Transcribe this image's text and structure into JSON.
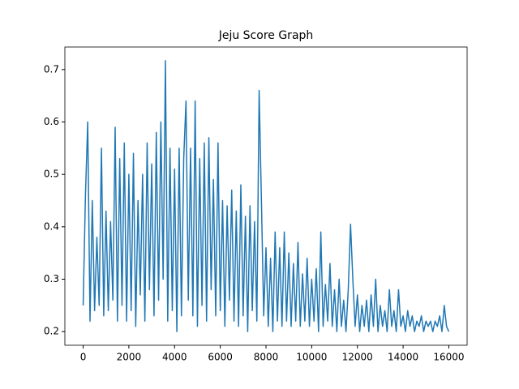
{
  "chart_data": {
    "type": "line",
    "title": "Jeju Score Graph",
    "x": [
      0,
      100,
      200,
      300,
      400,
      500,
      600,
      700,
      800,
      900,
      1000,
      1100,
      1200,
      1300,
      1400,
      1500,
      1600,
      1700,
      1800,
      1900,
      2000,
      2100,
      2200,
      2300,
      2400,
      2500,
      2600,
      2700,
      2800,
      2900,
      3000,
      3100,
      3200,
      3300,
      3400,
      3500,
      3600,
      3700,
      3800,
      3900,
      4000,
      4100,
      4200,
      4300,
      4400,
      4500,
      4600,
      4700,
      4800,
      4900,
      5000,
      5100,
      5200,
      5300,
      5400,
      5500,
      5600,
      5700,
      5800,
      5900,
      6000,
      6100,
      6200,
      6300,
      6400,
      6500,
      6600,
      6700,
      6800,
      6900,
      7000,
      7100,
      7200,
      7300,
      7400,
      7500,
      7600,
      7700,
      7800,
      7900,
      8000,
      8100,
      8200,
      8300,
      8400,
      8500,
      8600,
      8700,
      8800,
      8900,
      9000,
      9100,
      9200,
      9300,
      9400,
      9500,
      9600,
      9700,
      9800,
      9900,
      10000,
      10100,
      10200,
      10300,
      10400,
      10500,
      10600,
      10700,
      10800,
      10900,
      11000,
      11100,
      11200,
      11300,
      11400,
      11500,
      11600,
      11700,
      11800,
      11900,
      12000,
      12100,
      12200,
      12300,
      12400,
      12500,
      12600,
      12700,
      12800,
      12900,
      13000,
      13100,
      13200,
      13300,
      13400,
      13500,
      13600,
      13700,
      13800,
      13900,
      14000,
      14100,
      14200,
      14300,
      14400,
      14500,
      14600,
      14700,
      14800,
      14900,
      15000,
      15100,
      15200,
      15300,
      15400,
      15500,
      15600,
      15700,
      15800,
      15900,
      16000
    ],
    "values": [
      0.25,
      0.46,
      0.6,
      0.22,
      0.45,
      0.24,
      0.38,
      0.25,
      0.55,
      0.23,
      0.43,
      0.24,
      0.41,
      0.26,
      0.59,
      0.22,
      0.53,
      0.25,
      0.56,
      0.22,
      0.5,
      0.24,
      0.54,
      0.21,
      0.45,
      0.27,
      0.5,
      0.22,
      0.56,
      0.28,
      0.52,
      0.23,
      0.58,
      0.26,
      0.6,
      0.3,
      0.717,
      0.22,
      0.55,
      0.24,
      0.51,
      0.2,
      0.55,
      0.23,
      0.53,
      0.64,
      0.26,
      0.55,
      0.23,
      0.64,
      0.21,
      0.53,
      0.25,
      0.56,
      0.22,
      0.57,
      0.28,
      0.49,
      0.23,
      0.56,
      0.24,
      0.45,
      0.21,
      0.44,
      0.26,
      0.47,
      0.22,
      0.43,
      0.21,
      0.48,
      0.23,
      0.42,
      0.2,
      0.44,
      0.24,
      0.41,
      0.22,
      0.66,
      0.45,
      0.23,
      0.36,
      0.21,
      0.34,
      0.2,
      0.39,
      0.22,
      0.36,
      0.21,
      0.39,
      0.22,
      0.35,
      0.21,
      0.33,
      0.22,
      0.37,
      0.21,
      0.31,
      0.22,
      0.34,
      0.21,
      0.3,
      0.22,
      0.32,
      0.2,
      0.39,
      0.21,
      0.29,
      0.22,
      0.33,
      0.21,
      0.28,
      0.2,
      0.3,
      0.21,
      0.26,
      0.2,
      0.28,
      0.405,
      0.3,
      0.21,
      0.27,
      0.2,
      0.25,
      0.21,
      0.26,
      0.2,
      0.27,
      0.21,
      0.3,
      0.2,
      0.25,
      0.21,
      0.24,
      0.2,
      0.28,
      0.21,
      0.24,
      0.2,
      0.28,
      0.21,
      0.23,
      0.2,
      0.24,
      0.21,
      0.23,
      0.2,
      0.22,
      0.21,
      0.23,
      0.2,
      0.22,
      0.21,
      0.22,
      0.2,
      0.22,
      0.21,
      0.23,
      0.2,
      0.25,
      0.21,
      0.2
    ],
    "color": "#1f77b4",
    "xlim": [
      -800,
      16800
    ],
    "xticks": [
      0,
      2000,
      4000,
      6000,
      8000,
      10000,
      12000,
      14000,
      16000
    ],
    "ylim": [
      0.174,
      0.743
    ],
    "yticks": [
      0.2,
      0.3,
      0.4,
      0.5,
      0.6,
      0.7
    ]
  }
}
